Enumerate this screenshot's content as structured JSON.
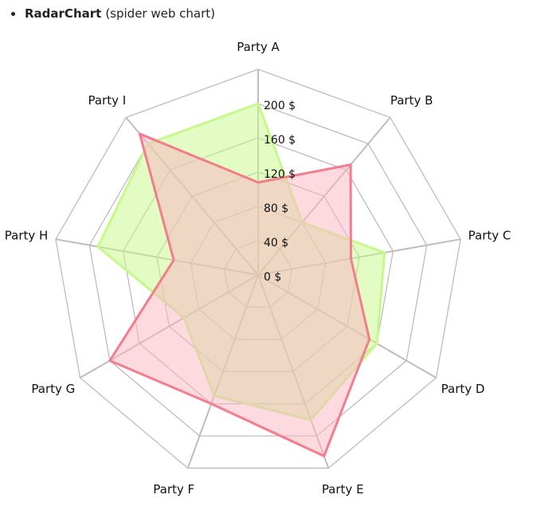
{
  "header": {
    "title": "RadarChart",
    "subtitle": "(spider web chart)"
  },
  "chart_data": {
    "type": "radar",
    "categories": [
      "Party A",
      "Party B",
      "Party C",
      "Party D",
      "Party E",
      "Party F",
      "Party G",
      "Party H",
      "Party I"
    ],
    "rlim": [
      0,
      240
    ],
    "ticks": [
      0,
      40,
      80,
      120,
      160,
      200
    ],
    "tick_labels": [
      "0 $",
      "40 $",
      "80 $",
      "120 $",
      "160 $",
      "200 $"
    ],
    "grid": true,
    "series": [
      {
        "values": [
          200,
          80,
          150,
          160,
          180,
          150,
          100,
          190,
          200
        ],
        "stroke": "#c6f98a",
        "fill": "#c6f98a"
      },
      {
        "values": [
          108,
          168,
          110,
          150,
          225,
          160,
          200,
          100,
          215
        ],
        "stroke": "#f47c8c",
        "fill": "#fbb4c1"
      }
    ],
    "colors": {
      "grid": "#bdbdbd",
      "spoke": "#bdbdbd"
    }
  }
}
